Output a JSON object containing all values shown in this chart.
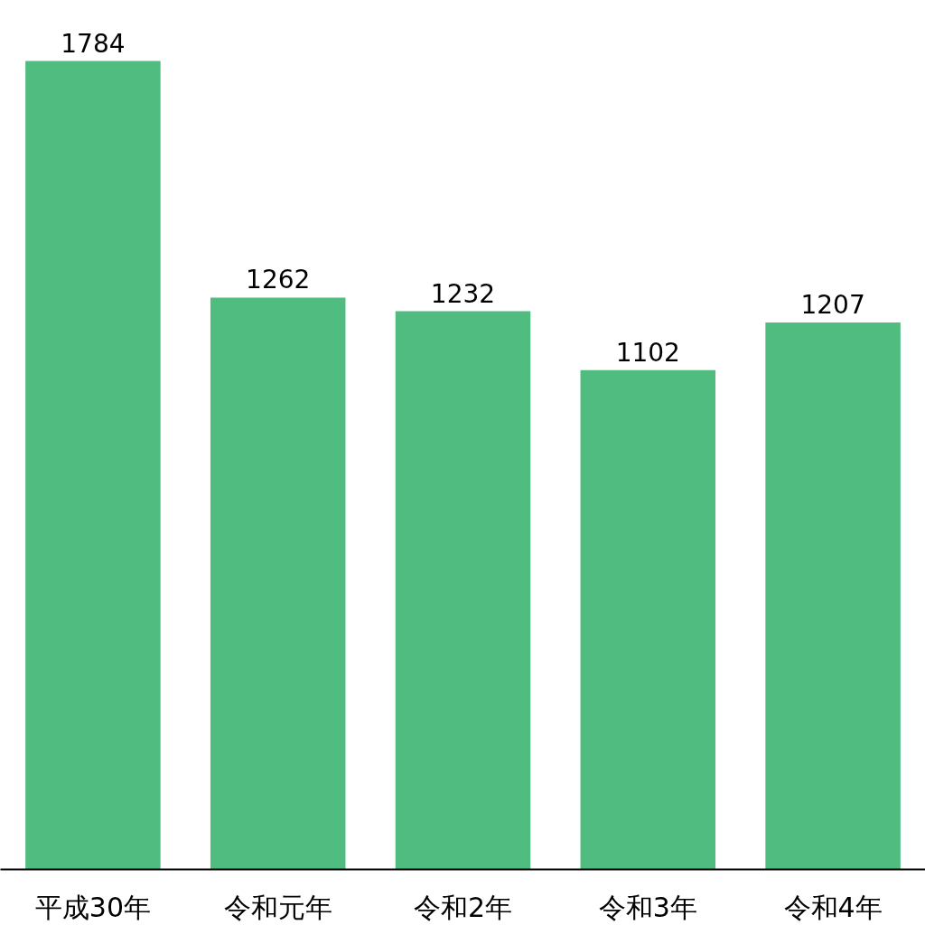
{
  "chart_data": {
    "type": "bar",
    "categories": [
      "平成30年",
      "令和元年",
      "令和2年",
      "令和3年",
      "令和4年"
    ],
    "values": [
      1784,
      1262,
      1232,
      1102,
      1207
    ],
    "color": "#50bc7f",
    "data_labels": true
  }
}
